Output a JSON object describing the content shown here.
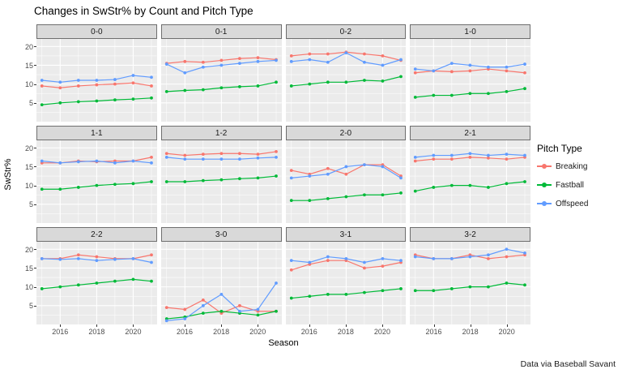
{
  "title": "Changes in SwStr% by Count and Pitch Type",
  "caption": "Data via Baseball Savant",
  "axes": {
    "x_label": "Season",
    "y_label": "SwStr%",
    "x_tick_labels": [
      "2016",
      "2018",
      "2020"
    ],
    "y_tick_labels": [
      "5",
      "10",
      "15",
      "20"
    ]
  },
  "legend": {
    "title": "Pitch Type",
    "entries": [
      {
        "label": "Breaking",
        "color": "#F8766D"
      },
      {
        "label": "Fastball",
        "color": "#00BA38"
      },
      {
        "label": "Offspeed",
        "color": "#619CFF"
      }
    ]
  },
  "style": {
    "panel_bg": "#EBEBEB",
    "strip_bg": "#D9D9D9",
    "grid_color": "#FFFFFF",
    "tick_color": "#333333",
    "axis_text_color": "#4D4D4D"
  },
  "chart_data": {
    "type": "line",
    "title": "Changes in SwStr% by Count and Pitch Type",
    "xlabel": "Season",
    "ylabel": "SwStr%",
    "x": [
      2015,
      2016,
      2017,
      2018,
      2019,
      2020,
      2021
    ],
    "x_ticks": [
      2016,
      2018,
      2020
    ],
    "x_minor_ticks": [
      2015,
      2017,
      2019,
      2021
    ],
    "y_ticks": [
      5,
      10,
      15,
      20
    ],
    "y_minor_ticks": [
      2.5,
      7.5,
      12.5,
      17.5
    ],
    "x_range": [
      2014.7,
      2021.3
    ],
    "y_range": [
      0,
      22
    ],
    "legend_position": "right",
    "series_names": [
      "Breaking",
      "Fastball",
      "Offspeed"
    ],
    "series_colors": {
      "Breaking": "#F8766D",
      "Fastball": "#00BA38",
      "Offspeed": "#619CFF"
    },
    "facets": [
      {
        "label": "0-0",
        "Breaking": [
          9.5,
          9.0,
          9.5,
          9.8,
          10.0,
          10.3,
          9.5
        ],
        "Fastball": [
          4.5,
          5.0,
          5.3,
          5.5,
          5.8,
          6.0,
          6.3
        ],
        "Offspeed": [
          11.0,
          10.5,
          11.0,
          11.0,
          11.2,
          12.3,
          11.8
        ]
      },
      {
        "label": "0-1",
        "Breaking": [
          15.5,
          16.0,
          15.8,
          16.3,
          16.8,
          17.0,
          16.5
        ],
        "Fastball": [
          8.0,
          8.3,
          8.5,
          9.0,
          9.3,
          9.5,
          10.5
        ],
        "Offspeed": [
          15.3,
          13.0,
          14.5,
          15.0,
          15.5,
          16.0,
          16.3
        ]
      },
      {
        "label": "0-2",
        "Breaking": [
          17.5,
          18.0,
          18.0,
          18.5,
          18.0,
          17.5,
          16.3
        ],
        "Fastball": [
          9.5,
          10.0,
          10.5,
          10.5,
          11.0,
          10.8,
          12.0
        ],
        "Offspeed": [
          16.0,
          16.5,
          15.8,
          18.3,
          15.8,
          15.0,
          16.5
        ]
      },
      {
        "label": "1-0",
        "Breaking": [
          13.0,
          13.5,
          13.3,
          13.5,
          14.0,
          13.5,
          13.0
        ],
        "Fastball": [
          6.5,
          7.0,
          7.0,
          7.5,
          7.5,
          8.0,
          8.8
        ],
        "Offspeed": [
          14.0,
          13.5,
          15.5,
          15.0,
          14.5,
          14.5,
          15.3
        ]
      },
      {
        "label": "1-1",
        "Breaking": [
          16.0,
          16.0,
          16.5,
          16.3,
          16.5,
          16.5,
          17.5
        ],
        "Fastball": [
          9.0,
          9.0,
          9.5,
          10.0,
          10.3,
          10.5,
          11.0
        ],
        "Offspeed": [
          16.5,
          16.0,
          16.3,
          16.5,
          16.0,
          16.5,
          16.0
        ]
      },
      {
        "label": "1-2",
        "Breaking": [
          18.5,
          18.0,
          18.3,
          18.5,
          18.5,
          18.3,
          19.0
        ],
        "Fastball": [
          11.0,
          11.0,
          11.3,
          11.5,
          11.8,
          12.0,
          12.5
        ],
        "Offspeed": [
          17.5,
          17.0,
          17.0,
          17.0,
          17.0,
          17.3,
          17.5
        ]
      },
      {
        "label": "2-0",
        "Breaking": [
          14.0,
          13.0,
          14.5,
          13.0,
          15.5,
          15.5,
          12.5
        ],
        "Fastball": [
          6.0,
          6.0,
          6.5,
          7.0,
          7.5,
          7.5,
          8.0
        ],
        "Offspeed": [
          12.0,
          12.5,
          13.0,
          15.0,
          15.5,
          15.0,
          12.0
        ]
      },
      {
        "label": "2-1",
        "Breaking": [
          16.5,
          17.0,
          17.0,
          17.5,
          17.3,
          17.0,
          17.5
        ],
        "Fastball": [
          8.5,
          9.5,
          10.0,
          10.0,
          9.5,
          10.5,
          11.0
        ],
        "Offspeed": [
          17.5,
          18.0,
          18.0,
          18.5,
          18.0,
          18.3,
          18.0
        ]
      },
      {
        "label": "2-2",
        "Breaking": [
          17.5,
          17.5,
          18.5,
          18.0,
          17.5,
          17.5,
          18.5
        ],
        "Fastball": [
          9.5,
          10.0,
          10.5,
          11.0,
          11.5,
          12.0,
          11.5
        ],
        "Offspeed": [
          17.5,
          17.3,
          17.5,
          17.0,
          17.3,
          17.5,
          16.5
        ]
      },
      {
        "label": "3-0",
        "Breaking": [
          4.5,
          4.0,
          6.5,
          3.0,
          5.0,
          3.5,
          3.5
        ],
        "Fastball": [
          1.5,
          2.0,
          3.0,
          3.5,
          3.0,
          2.5,
          3.5
        ],
        "Offspeed": [
          1.0,
          1.5,
          5.0,
          8.0,
          3.5,
          4.0,
          11.0
        ]
      },
      {
        "label": "3-1",
        "Breaking": [
          14.5,
          16.0,
          17.0,
          17.0,
          15.0,
          15.5,
          16.5
        ],
        "Fastball": [
          7.0,
          7.5,
          8.0,
          8.0,
          8.5,
          9.0,
          9.5
        ],
        "Offspeed": [
          17.0,
          16.5,
          18.0,
          17.5,
          16.5,
          17.5,
          17.0
        ]
      },
      {
        "label": "3-2",
        "Breaking": [
          18.5,
          17.5,
          17.5,
          18.5,
          17.5,
          18.0,
          18.5
        ],
        "Fastball": [
          9.0,
          9.0,
          9.5,
          10.0,
          10.0,
          11.0,
          10.5
        ],
        "Offspeed": [
          18.0,
          17.5,
          17.5,
          18.0,
          18.5,
          20.0,
          19.0
        ]
      }
    ]
  }
}
